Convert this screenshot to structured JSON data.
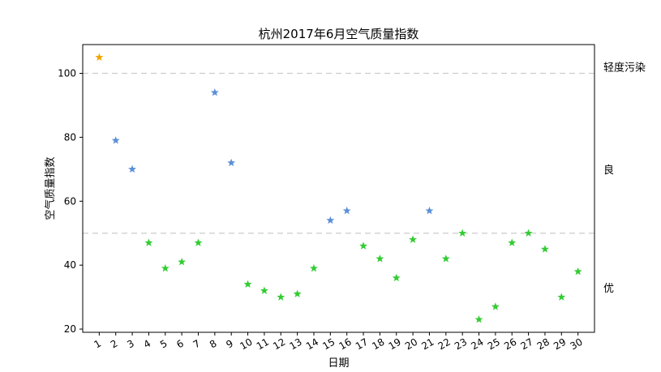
{
  "chart_data": {
    "type": "scatter",
    "title": "杭州2017年6月空气质量指数",
    "xlabel": "日期",
    "ylabel": "空气质量指数",
    "x": [
      1,
      2,
      3,
      4,
      5,
      6,
      7,
      8,
      9,
      10,
      11,
      12,
      13,
      14,
      15,
      16,
      17,
      18,
      19,
      20,
      21,
      22,
      23,
      24,
      25,
      26,
      27,
      28,
      29,
      30
    ],
    "values": [
      105,
      79,
      70,
      47,
      39,
      41,
      47,
      94,
      72,
      34,
      32,
      30,
      31,
      39,
      54,
      57,
      46,
      42,
      36,
      48,
      57,
      42,
      50,
      23,
      27,
      47,
      50,
      45,
      30,
      38
    ],
    "xlim": [
      0,
      31
    ],
    "ylim": [
      19,
      109
    ],
    "yticks": [
      20,
      40,
      60,
      80,
      100
    ],
    "thresholds": [
      50,
      100
    ],
    "bands": [
      {
        "label": "轻度污染",
        "value": 102
      },
      {
        "label": "良",
        "value": 70
      },
      {
        "label": "优",
        "value": 33
      }
    ],
    "colors": {
      "good": "#33cc33",
      "moderate": "#5b8fd9",
      "light_pollution": "#f0a500",
      "threshold_line": "#cccccc"
    },
    "marker": "star",
    "grid": false
  }
}
